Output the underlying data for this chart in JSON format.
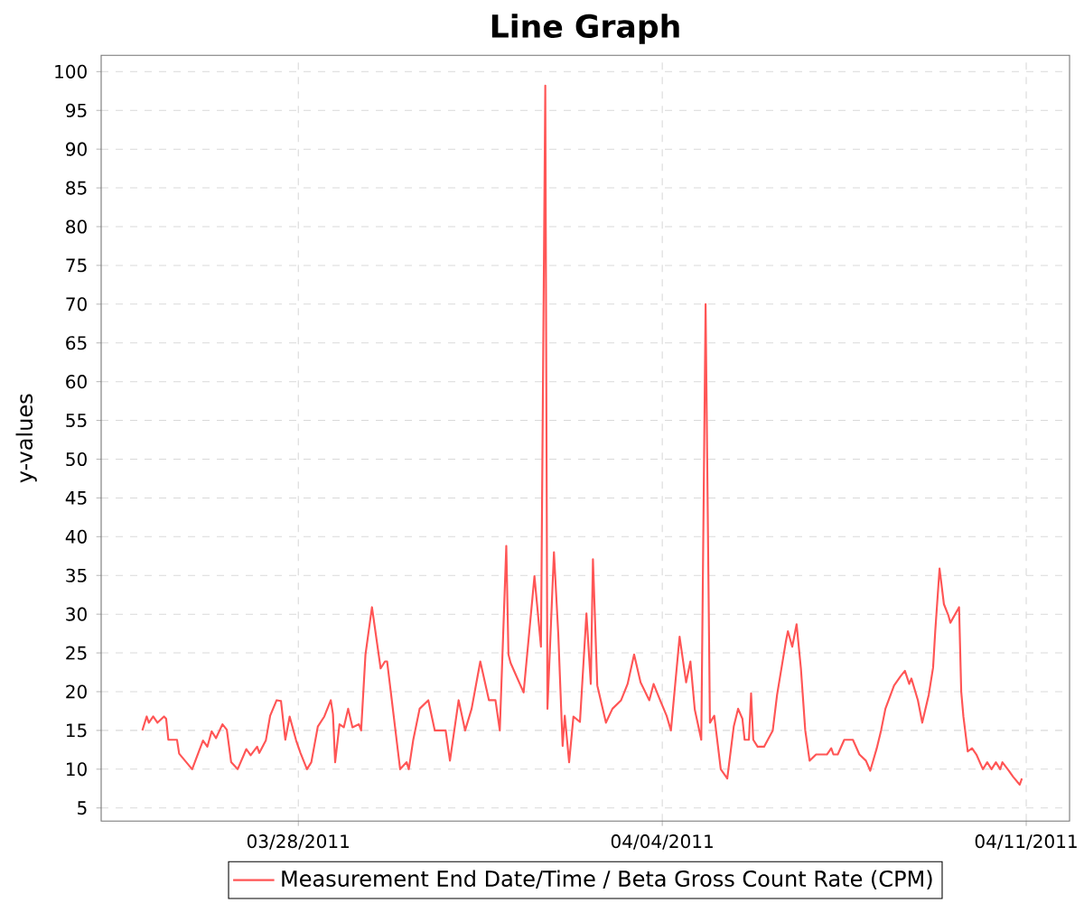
{
  "chart_data": {
    "type": "line",
    "title": "Line Graph",
    "ylabel": "y-values",
    "xlim": [
      "2011-03-24T05:00",
      "2011-04-11T20:00"
    ],
    "ylim": [
      3.3,
      102.1
    ],
    "xticks": [
      {
        "value": "2011-03-28",
        "label": "03/28/2011"
      },
      {
        "value": "2011-04-04",
        "label": "04/04/2011"
      },
      {
        "value": "2011-04-11",
        "label": "04/11/2011"
      }
    ],
    "yticks": [
      5,
      10,
      15,
      20,
      25,
      30,
      35,
      40,
      45,
      50,
      55,
      60,
      65,
      70,
      75,
      80,
      85,
      90,
      95,
      100
    ],
    "grid": true,
    "legend": "bottom",
    "marker": "none",
    "line_style": "solid",
    "x": [
      "2011-03-25T00:00",
      "2011-03-25T02:00",
      "2011-03-25T03:00",
      "2011-03-25T05:00",
      "2011-03-25T07:00",
      "2011-03-25T10:00",
      "2011-03-25T11:00",
      "2011-03-25T12:00",
      "2011-03-25T16:00",
      "2011-03-25T17:00",
      "2011-03-25T20:00",
      "2011-03-25T23:00",
      "2011-03-26T04:00",
      "2011-03-26T06:00",
      "2011-03-26T08:00",
      "2011-03-26T10:00",
      "2011-03-26T13:00",
      "2011-03-26T15:00",
      "2011-03-26T17:00",
      "2011-03-26T20:00",
      "2011-03-27T00:00",
      "2011-03-27T02:00",
      "2011-03-27T05:00",
      "2011-03-27T06:00",
      "2011-03-27T09:00",
      "2011-03-27T11:00",
      "2011-03-27T14:00",
      "2011-03-27T16:00",
      "2011-03-27T18:00",
      "2011-03-27T20:00",
      "2011-03-27T23:00",
      "2011-03-28T01:00",
      "2011-03-28T04:00",
      "2011-03-28T06:00",
      "2011-03-28T09:00",
      "2011-03-28T12:00",
      "2011-03-28T15:00",
      "2011-03-28T16:00",
      "2011-03-28T17:00",
      "2011-03-28T19:00",
      "2011-03-28T21:00",
      "2011-03-28T23:00",
      "2011-03-29T01:00",
      "2011-03-29T04:00",
      "2011-03-29T05:00",
      "2011-03-29T07:00",
      "2011-03-29T10:00",
      "2011-03-29T14:00",
      "2011-03-29T16:00",
      "2011-03-29T17:00",
      "2011-03-29T22:00",
      "2011-03-29T23:00",
      "2011-03-30T02:00",
      "2011-03-30T03:00",
      "2011-03-30T05:00",
      "2011-03-30T08:00",
      "2011-03-30T12:00",
      "2011-03-30T15:00",
      "2011-03-30T20:00",
      "2011-03-30T22:00",
      "2011-03-31T02:00",
      "2011-03-31T05:00",
      "2011-03-31T08:00",
      "2011-03-31T12:00",
      "2011-03-31T16:00",
      "2011-03-31T19:00",
      "2011-03-31T21:00",
      "2011-04-01T00:00",
      "2011-04-01T01:00",
      "2011-04-01T02:00",
      "2011-04-01T08:00",
      "2011-04-01T13:00",
      "2011-04-01T16:00",
      "2011-04-01T18:00",
      "2011-04-01T19:00",
      "2011-04-01T22:00",
      "2011-04-02T00:00",
      "2011-04-02T02:00",
      "2011-04-02T03:00",
      "2011-04-02T05:00",
      "2011-04-02T07:00",
      "2011-04-02T10:00",
      "2011-04-02T13:00",
      "2011-04-02T15:00",
      "2011-04-02T16:00",
      "2011-04-02T18:00",
      "2011-04-02T22:00",
      "2011-04-03T01:00",
      "2011-04-03T05:00",
      "2011-04-03T08:00",
      "2011-04-03T11:00",
      "2011-04-03T14:00",
      "2011-04-03T18:00",
      "2011-04-03T20:00",
      "2011-04-03T23:00",
      "2011-04-04T02:00",
      "2011-04-04T04:00",
      "2011-04-04T08:00",
      "2011-04-04T11:00",
      "2011-04-04T13:00",
      "2011-04-04T15:00",
      "2011-04-04T18:00",
      "2011-04-04T20:00",
      "2011-04-04T22:00",
      "2011-04-05T00:00",
      "2011-04-05T03:00",
      "2011-04-05T06:00",
      "2011-04-05T09:00",
      "2011-04-05T11:00",
      "2011-04-05T13:00",
      "2011-04-05T14:00",
      "2011-04-05T16:00",
      "2011-04-05T17:00",
      "2011-04-05T18:00",
      "2011-04-05T20:00",
      "2011-04-05T23:00",
      "2011-04-06T03:00",
      "2011-04-06T05:00",
      "2011-04-06T07:00",
      "2011-04-06T09:00",
      "2011-04-06T10:00",
      "2011-04-06T12:00",
      "2011-04-06T14:00",
      "2011-04-06T16:00",
      "2011-04-06T18:00",
      "2011-04-06T20:00",
      "2011-04-06T23:00",
      "2011-04-07T01:00",
      "2011-04-07T04:00",
      "2011-04-07T06:00",
      "2011-04-07T07:00",
      "2011-04-07T09:00",
      "2011-04-07T12:00",
      "2011-04-07T16:00",
      "2011-04-07T19:00",
      "2011-04-07T22:00",
      "2011-04-08T00:00",
      "2011-04-08T03:00",
      "2011-04-08T05:00",
      "2011-04-08T07:00",
      "2011-04-08T11:00",
      "2011-04-08T14:00",
      "2011-04-08T16:00",
      "2011-04-08T18:00",
      "2011-04-08T19:00",
      "2011-04-08T22:00",
      "2011-04-09T00:00",
      "2011-04-09T03:00",
      "2011-04-09T05:00",
      "2011-04-09T06:00",
      "2011-04-09T08:00",
      "2011-04-09T10:00",
      "2011-04-09T12:00",
      "2011-04-09T13:00",
      "2011-04-09T15:00",
      "2011-04-09T17:00",
      "2011-04-09T18:00",
      "2011-04-09T19:00",
      "2011-04-09T21:00",
      "2011-04-09T23:00",
      "2011-04-10T01:00",
      "2011-04-10T04:00",
      "2011-04-10T06:00",
      "2011-04-10T08:00",
      "2011-04-10T10:00",
      "2011-04-10T12:00",
      "2011-04-10T13:00",
      "2011-04-10T16:00",
      "2011-04-10T18:00",
      "2011-04-10T21:00",
      "2011-04-10T22:00"
    ],
    "series": [
      {
        "name": "Measurement End Date/Time / Beta Gross Count Rate (CPM)",
        "color": "#ff5555",
        "values": [
          15.0,
          16.8,
          16.0,
          16.8,
          16.0,
          16.8,
          16.5,
          13.8,
          13.8,
          12.0,
          11.0,
          10.0,
          13.7,
          12.9,
          14.9,
          14.0,
          15.8,
          15.1,
          10.9,
          10.0,
          12.6,
          11.8,
          12.9,
          12.1,
          13.7,
          16.9,
          18.9,
          18.8,
          13.8,
          16.8,
          13.7,
          12.1,
          10.0,
          10.9,
          15.5,
          16.8,
          18.9,
          17.1,
          10.9,
          15.8,
          15.4,
          17.8,
          15.4,
          15.8,
          15.0,
          24.8,
          30.9,
          23.0,
          23.9,
          23.9,
          12.3,
          10.0,
          10.9,
          10.0,
          13.7,
          17.8,
          18.9,
          15.0,
          15.0,
          11.1,
          18.9,
          15.0,
          17.8,
          23.9,
          18.9,
          18.9,
          15.0,
          38.8,
          24.8,
          23.7,
          19.9,
          34.9,
          25.8,
          98.2,
          17.8,
          38.0,
          27.4,
          13.0,
          16.9,
          10.9,
          16.8,
          16.1,
          30.1,
          21.0,
          37.1,
          20.8,
          16.0,
          17.8,
          18.9,
          21.0,
          24.8,
          21.2,
          18.9,
          21.0,
          18.9,
          16.9,
          15.0,
          27.1,
          21.2,
          23.9,
          17.7,
          13.8,
          70.0,
          16.0,
          16.9,
          10.0,
          8.8,
          15.5,
          17.8,
          16.5,
          13.8,
          13.8,
          19.8,
          13.8,
          12.9,
          12.9,
          15.0,
          19.6,
          23.0,
          26.4,
          27.8,
          25.8,
          28.7,
          23.0,
          15.0,
          11.1,
          11.9,
          11.9,
          11.9,
          12.7,
          11.9,
          11.9,
          13.8,
          13.8,
          11.9,
          11.1,
          9.8,
          12.7,
          15.0,
          17.8,
          20.8,
          22.0,
          22.7,
          21.0,
          21.7,
          18.9,
          16.0,
          19.6,
          23.1,
          27.8,
          35.9,
          31.3,
          29.9,
          28.9,
          29.9,
          30.9,
          20.0,
          16.8,
          12.3,
          12.7,
          11.9,
          10.0,
          10.9,
          10.0,
          10.9,
          10.0,
          10.9,
          9.8,
          9.0,
          8.0,
          8.8
        ]
      }
    ]
  }
}
